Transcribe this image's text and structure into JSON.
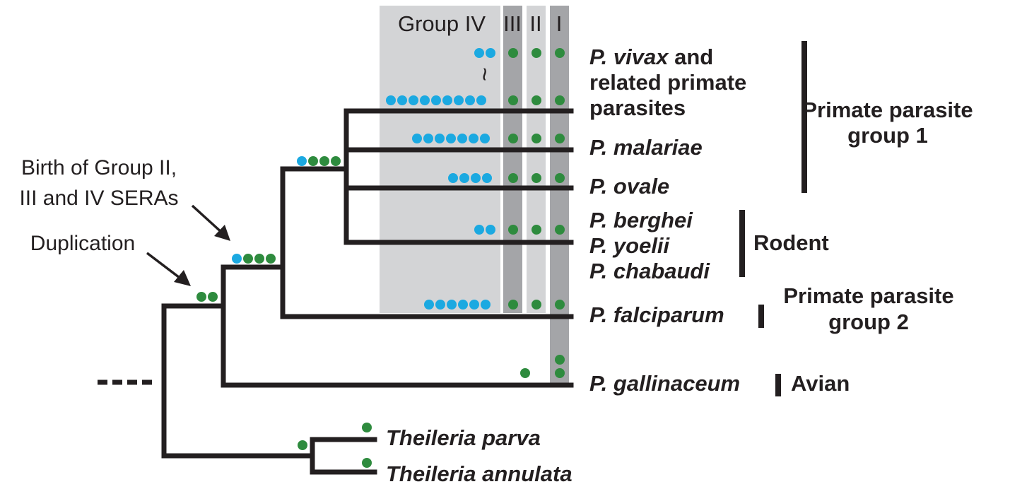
{
  "columns": {
    "group4": "Group IV",
    "group3": "III",
    "group2": "II",
    "group1": "I",
    "ellipsis": "~"
  },
  "annotations": {
    "birth_line1": "Birth of Group II,",
    "birth_line2": "III and IV SERAs",
    "duplication": "Duplication"
  },
  "taxa": {
    "vivax_italic": "P. vivax",
    "vivax_rest": " and",
    "vivax_line2": "related primate",
    "vivax_line3": "parasites",
    "malariae": "P. malariae",
    "ovale": "P. ovale",
    "berghei": "P. berghei",
    "yoelii": "P. yoelii",
    "chabaudi": "P. chabaudi",
    "falciparum": "P. falciparum",
    "gallinaceum": "P. gallinaceum",
    "theileria_parva": "Theileria parva",
    "theileria_annulata": "Theileria annulata"
  },
  "groups": {
    "primate1_line1": "Primate parasite",
    "primate1_line2": "group 1",
    "rodent": "Rodent",
    "primate2_line1": "Primate parasite",
    "primate2_line2": "group 2",
    "avian": "Avian"
  },
  "colors": {
    "blue_dot": "#1ba9e1",
    "green_dot": "#2e8b3e",
    "band_light": "#d3d4d6",
    "band_dark": "#a4a5a8",
    "tree": "#231f20"
  },
  "sera_counts": [
    {
      "taxon": "P. vivax and related primate parasites",
      "group_iv_min": 2,
      "group_iv_max": 9,
      "group_iii": 1,
      "group_ii": 1,
      "group_i": 1
    },
    {
      "taxon": "P. malariae",
      "group_iv": 7,
      "group_iii": 1,
      "group_ii": 1,
      "group_i": 1
    },
    {
      "taxon": "P. ovale",
      "group_iv": 4,
      "group_iii": 1,
      "group_ii": 1,
      "group_i": 1
    },
    {
      "taxon": "Rodent",
      "group_iv": 2,
      "group_iii": 1,
      "group_ii": 1,
      "group_i": 1
    },
    {
      "taxon": "P. falciparum",
      "group_iv": 6,
      "group_iii": 1,
      "group_ii": 1,
      "group_i": 1
    },
    {
      "taxon": "P. gallinaceum",
      "group_i": 3
    }
  ]
}
